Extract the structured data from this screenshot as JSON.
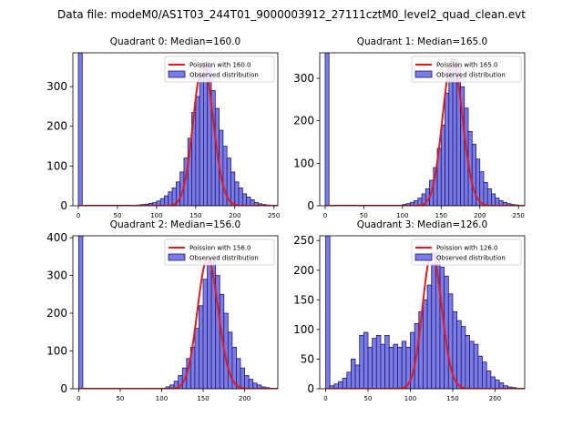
{
  "suptitle": "Data file: modeM0/AS1T03_244T01_9000003912_27111cztM0_level2_quad_clean.evt",
  "legend": {
    "observed_label": "Observed distribution"
  },
  "colors": {
    "bar_fill": "#7b7be8",
    "bar_edge": "#1c1c6e",
    "poisson": "#e31a1c",
    "axis": "#000000"
  },
  "chart_data": [
    {
      "type": "bar",
      "title": "Quadrant 0: Median=160.0",
      "legend_poisson": "Poission with 160.0",
      "median": 160,
      "xlim": [
        -7,
        255
      ],
      "ylim": [
        0,
        385
      ],
      "xticks": [
        0,
        50,
        100,
        150,
        200,
        250
      ],
      "yticks": [
        0,
        100,
        200,
        300
      ],
      "bin_width": 5,
      "bins": [
        [
          0,
          385
        ],
        [
          75,
          2
        ],
        [
          80,
          3
        ],
        [
          85,
          4
        ],
        [
          90,
          6
        ],
        [
          95,
          8
        ],
        [
          100,
          12
        ],
        [
          105,
          18
        ],
        [
          110,
          25
        ],
        [
          115,
          35
        ],
        [
          120,
          45
        ],
        [
          125,
          60
        ],
        [
          130,
          85
        ],
        [
          135,
          120
        ],
        [
          140,
          170
        ],
        [
          145,
          235
        ],
        [
          150,
          275
        ],
        [
          155,
          335
        ],
        [
          160,
          360
        ],
        [
          165,
          350
        ],
        [
          170,
          290
        ],
        [
          175,
          245
        ],
        [
          180,
          190
        ],
        [
          185,
          150
        ],
        [
          190,
          120
        ],
        [
          195,
          85
        ],
        [
          200,
          60
        ],
        [
          205,
          45
        ],
        [
          210,
          30
        ],
        [
          215,
          22
        ],
        [
          220,
          15
        ],
        [
          225,
          8
        ],
        [
          230,
          5
        ],
        [
          235,
          3
        ],
        [
          240,
          2
        ]
      ]
    },
    {
      "type": "bar",
      "title": "Quadrant 1: Median=165.0",
      "legend_poisson": "Poission with 165.0",
      "median": 165,
      "xlim": [
        -7,
        258
      ],
      "ylim": [
        0,
        360
      ],
      "xticks": [
        0,
        50,
        100,
        150,
        200,
        250
      ],
      "yticks": [
        0,
        100,
        200,
        300
      ],
      "bin_width": 5,
      "bins": [
        [
          0,
          360
        ],
        [
          100,
          3
        ],
        [
          105,
          5
        ],
        [
          110,
          8
        ],
        [
          115,
          12
        ],
        [
          120,
          18
        ],
        [
          125,
          28
        ],
        [
          130,
          40
        ],
        [
          135,
          60
        ],
        [
          140,
          90
        ],
        [
          145,
          135
        ],
        [
          150,
          190
        ],
        [
          155,
          265
        ],
        [
          160,
          320
        ],
        [
          165,
          345
        ],
        [
          170,
          330
        ],
        [
          175,
          280
        ],
        [
          180,
          230
        ],
        [
          185,
          175
        ],
        [
          190,
          145
        ],
        [
          195,
          110
        ],
        [
          200,
          80
        ],
        [
          205,
          55
        ],
        [
          210,
          40
        ],
        [
          215,
          28
        ],
        [
          220,
          18
        ],
        [
          225,
          12
        ],
        [
          230,
          8
        ],
        [
          235,
          5
        ],
        [
          240,
          3
        ],
        [
          245,
          2
        ]
      ]
    },
    {
      "type": "bar",
      "title": "Quadrant 2: Median=156.0",
      "legend_poisson": "Poission with 156.0",
      "median": 156,
      "xlim": [
        -7,
        240
      ],
      "ylim": [
        0,
        405
      ],
      "xticks": [
        0,
        50,
        100,
        150,
        200
      ],
      "yticks": [
        0,
        100,
        200,
        300,
        400
      ],
      "bin_width": 5,
      "bins": [
        [
          0,
          405
        ],
        [
          105,
          5
        ],
        [
          110,
          10
        ],
        [
          115,
          20
        ],
        [
          120,
          35
        ],
        [
          125,
          55
        ],
        [
          130,
          80
        ],
        [
          135,
          110
        ],
        [
          140,
          160
        ],
        [
          145,
          220
        ],
        [
          150,
          290
        ],
        [
          155,
          345
        ],
        [
          160,
          335
        ],
        [
          165,
          300
        ],
        [
          170,
          250
        ],
        [
          175,
          200
        ],
        [
          180,
          150
        ],
        [
          185,
          110
        ],
        [
          190,
          80
        ],
        [
          195,
          55
        ],
        [
          200,
          35
        ],
        [
          205,
          25
        ],
        [
          210,
          15
        ],
        [
          215,
          10
        ],
        [
          220,
          5
        ],
        [
          225,
          3
        ]
      ]
    },
    {
      "type": "bar",
      "title": "Quadrant 3: Median=126.0",
      "legend_poisson": "Poission with 126.0",
      "median": 126,
      "xlim": [
        -7,
        235
      ],
      "ylim": [
        0,
        258
      ],
      "xticks": [
        0,
        50,
        100,
        150,
        200
      ],
      "yticks": [
        0,
        50,
        100,
        150,
        200,
        250
      ],
      "bin_width": 5,
      "bins": [
        [
          0,
          258
        ],
        [
          5,
          5
        ],
        [
          10,
          8
        ],
        [
          15,
          12
        ],
        [
          20,
          18
        ],
        [
          25,
          28
        ],
        [
          30,
          50
        ],
        [
          35,
          40
        ],
        [
          40,
          90
        ],
        [
          45,
          95
        ],
        [
          50,
          70
        ],
        [
          55,
          85
        ],
        [
          60,
          90
        ],
        [
          65,
          75
        ],
        [
          70,
          90
        ],
        [
          75,
          70
        ],
        [
          80,
          75
        ],
        [
          85,
          70
        ],
        [
          90,
          80
        ],
        [
          95,
          70
        ],
        [
          100,
          95
        ],
        [
          105,
          110
        ],
        [
          110,
          130
        ],
        [
          115,
          150
        ],
        [
          120,
          175
        ],
        [
          125,
          210
        ],
        [
          130,
          230
        ],
        [
          135,
          205
        ],
        [
          140,
          190
        ],
        [
          145,
          160
        ],
        [
          150,
          130
        ],
        [
          155,
          115
        ],
        [
          160,
          105
        ],
        [
          165,
          90
        ],
        [
          170,
          80
        ],
        [
          175,
          75
        ],
        [
          180,
          55
        ],
        [
          185,
          45
        ],
        [
          190,
          30
        ],
        [
          195,
          20
        ],
        [
          200,
          15
        ],
        [
          205,
          10
        ],
        [
          210,
          5
        ],
        [
          215,
          3
        ],
        [
          220,
          2
        ]
      ]
    }
  ]
}
